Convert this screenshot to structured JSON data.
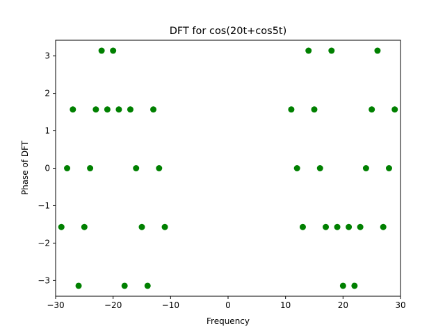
{
  "chart_data": {
    "type": "scatter",
    "title": "DFT for cos(20t+cos5t)",
    "xlabel": "Frequency",
    "ylabel": "Phase of DFT",
    "xlim": [
      -30,
      30
    ],
    "ylim": [
      -3.42,
      3.42
    ],
    "xticks": [
      -30,
      -20,
      -10,
      0,
      10,
      20,
      30
    ],
    "yticks": [
      -3,
      -2,
      -1,
      0,
      1,
      2,
      3
    ],
    "ytick_labels": [
      "−3",
      "−2",
      "−1",
      "0",
      "1",
      "2",
      "3"
    ],
    "xtick_labels": [
      "−30",
      "−20",
      "−10",
      "0",
      "10",
      "20",
      "30"
    ],
    "grid": false,
    "marker_color": "#008000",
    "series": [
      {
        "x": [
          -29,
          -28,
          -27,
          -26,
          -25,
          -24,
          -23,
          -22,
          -21,
          -20,
          -19,
          -18,
          -17,
          -16,
          -15,
          -14,
          -13,
          -12,
          -11,
          11,
          12,
          13,
          14,
          15,
          16,
          17,
          18,
          19,
          20,
          21,
          22,
          23,
          24,
          25,
          26,
          27,
          28,
          29
        ],
        "y": [
          -1.5708,
          0,
          1.5708,
          -3.1416,
          -1.5708,
          0,
          1.5708,
          3.1416,
          1.5708,
          3.1416,
          1.5708,
          -3.1416,
          1.5708,
          0,
          -1.5708,
          -3.1416,
          1.5708,
          0,
          -1.5708,
          1.5708,
          0,
          -1.5708,
          3.1416,
          1.5708,
          0,
          -1.5708,
          3.1416,
          -1.5708,
          -3.1416,
          -1.5708,
          -3.1416,
          -1.5708,
          0,
          1.5708,
          3.1416,
          -1.5708,
          0,
          1.5708
        ]
      }
    ]
  }
}
